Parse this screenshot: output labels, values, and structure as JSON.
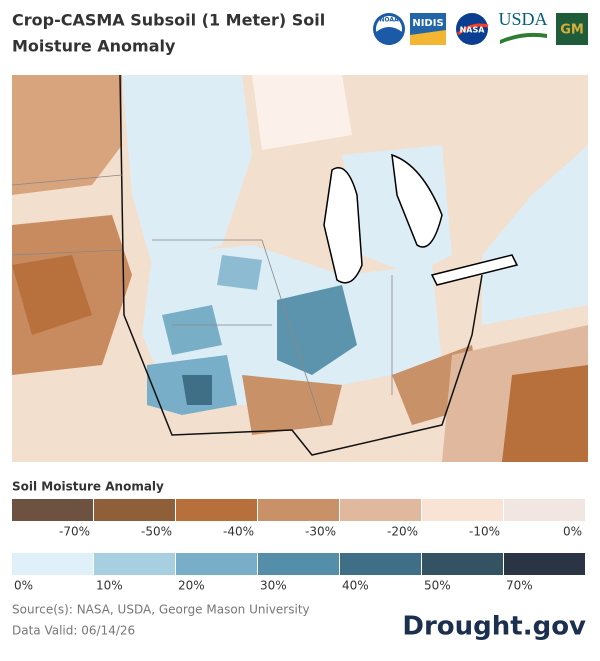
{
  "header": {
    "title_lines": [
      "Crop-CASMA Subsoil (1 Meter) Soil",
      "Moisture Anomaly"
    ],
    "logos": [
      "NOAA",
      "NIDIS",
      "NASA",
      "USDA",
      "GM"
    ]
  },
  "legend": {
    "title": "Soil Moisture Anomaly",
    "dry": [
      {
        "label": "-70%",
        "color": "#6e5241"
      },
      {
        "label": "-50%",
        "color": "#8e5f39"
      },
      {
        "label": "-40%",
        "color": "#b7703c"
      },
      {
        "label": "-30%",
        "color": "#c99168"
      },
      {
        "label": "-20%",
        "color": "#dfb89e"
      },
      {
        "label": "-10%",
        "color": "#f8e3d5"
      },
      {
        "label": "0%",
        "color": "#f2e6e2"
      }
    ],
    "wet": [
      {
        "label": "0%",
        "color": "#dff0f8"
      },
      {
        "label": "10%",
        "color": "#a7cfe0"
      },
      {
        "label": "20%",
        "color": "#78aec7"
      },
      {
        "label": "30%",
        "color": "#548ea8"
      },
      {
        "label": "40%",
        "color": "#3f6f86"
      },
      {
        "label": "50%",
        "color": "#335363"
      },
      {
        "label": "70%",
        "color": "#2b3445"
      }
    ]
  },
  "footer": {
    "source": "Source(s): NASA, USDA, George Mason University",
    "valid": "Data Valid: 06/14/26",
    "brand": "Drought.gov"
  }
}
